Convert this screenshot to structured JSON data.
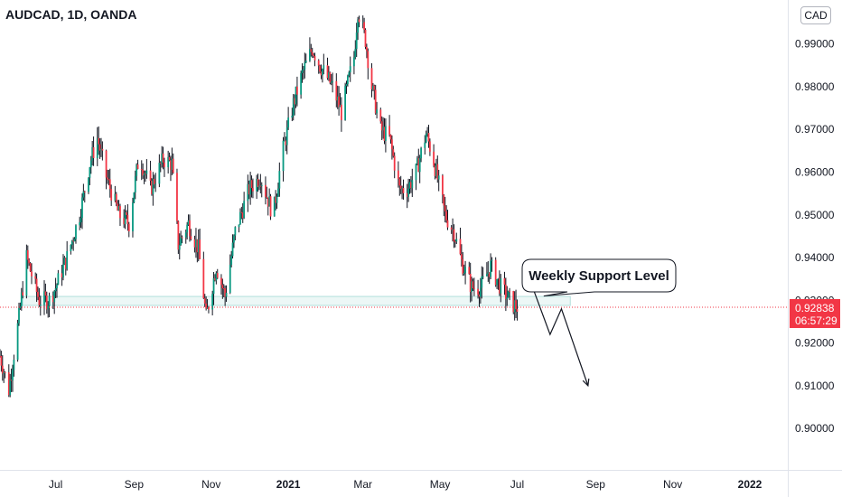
{
  "header": {
    "symbol_title": "AUDCAD, 1D, OANDA"
  },
  "currency_badge": "CAD",
  "chart_data": {
    "type": "candlestick",
    "title": "AUDCAD, 1D, OANDA",
    "y_ticks": [
      "0.99000",
      "0.98000",
      "0.97000",
      "0.96000",
      "0.95000",
      "0.94000",
      "0.93000",
      "0.92000",
      "0.91000",
      "0.90000"
    ],
    "y_tick_values": [
      0.99,
      0.98,
      0.97,
      0.96,
      0.95,
      0.94,
      0.93,
      0.92,
      0.91,
      0.9
    ],
    "ylim": [
      0.8903,
      1.0003
    ],
    "x_ticks": [
      "Jul",
      "Sep",
      "Nov",
      "2021",
      "Mar",
      "May",
      "Jul",
      "Sep",
      "Nov",
      "2022"
    ],
    "x_tick_dates": [
      "2020-07-01",
      "2020-09-01",
      "2020-11-01",
      "2021-01-01",
      "2021-03-01",
      "2021-05-01",
      "2021-07-01",
      "2021-09-01",
      "2021-11-01",
      "2022-01-01"
    ],
    "x_range": [
      "2020-05-18",
      "2022-01-31"
    ],
    "bold_x_ticks": [
      "2021",
      "2022"
    ],
    "price_path": [
      [
        "2020-05-18",
        0.917
      ],
      [
        "2020-05-25",
        0.909
      ],
      [
        "2020-06-02",
        0.926
      ],
      [
        "2020-06-08",
        0.94
      ],
      [
        "2020-06-18",
        0.93
      ],
      [
        "2020-06-26",
        0.93
      ],
      [
        "2020-07-01",
        0.933
      ],
      [
        "2020-07-10",
        0.94
      ],
      [
        "2020-07-20",
        0.95
      ],
      [
        "2020-07-28",
        0.962
      ],
      [
        "2020-08-03",
        0.968
      ],
      [
        "2020-08-10",
        0.959
      ],
      [
        "2020-08-20",
        0.95
      ],
      [
        "2020-08-28",
        0.948
      ],
      [
        "2020-09-05",
        0.964
      ],
      [
        "2020-09-14",
        0.956
      ],
      [
        "2020-09-24",
        0.963
      ],
      [
        "2020-10-01",
        0.962
      ],
      [
        "2020-10-06",
        0.943
      ],
      [
        "2020-10-14",
        0.948
      ],
      [
        "2020-10-22",
        0.942
      ],
      [
        "2020-10-28",
        0.926
      ],
      [
        "2020-11-05",
        0.938
      ],
      [
        "2020-11-12",
        0.931
      ],
      [
        "2020-11-20",
        0.946
      ],
      [
        "2020-12-01",
        0.956
      ],
      [
        "2020-12-10",
        0.959
      ],
      [
        "2020-12-20",
        0.95
      ],
      [
        "2020-12-27",
        0.964
      ],
      [
        "2021-01-05",
        0.976
      ],
      [
        "2021-01-12",
        0.983
      ],
      [
        "2021-01-20",
        0.989
      ],
      [
        "2021-01-26",
        0.985
      ],
      [
        "2021-02-05",
        0.98
      ],
      [
        "2021-02-12",
        0.974
      ],
      [
        "2021-02-18",
        0.982
      ],
      [
        "2021-02-22",
        0.987
      ],
      [
        "2021-02-25",
        0.998
      ],
      [
        "2021-03-03",
        0.991
      ],
      [
        "2021-03-08",
        0.98
      ],
      [
        "2021-03-15",
        0.97
      ],
      [
        "2021-03-22",
        0.968
      ],
      [
        "2021-03-30",
        0.956
      ],
      [
        "2021-04-05",
        0.956
      ],
      [
        "2021-04-12",
        0.96
      ],
      [
        "2021-04-20",
        0.969
      ],
      [
        "2021-04-25",
        0.964
      ],
      [
        "2021-05-05",
        0.95
      ],
      [
        "2021-05-12",
        0.946
      ],
      [
        "2021-05-18",
        0.939
      ],
      [
        "2021-05-26",
        0.933
      ],
      [
        "2021-06-02",
        0.933
      ],
      [
        "2021-06-10",
        0.938
      ],
      [
        "2021-06-18",
        0.933
      ],
      [
        "2021-06-28",
        0.929
      ],
      [
        "2021-07-01",
        0.9284
      ]
    ],
    "last_price": {
      "value": 0.92838,
      "label": "0.92838",
      "countdown": "06:57:29",
      "color": "#f23645"
    },
    "support_zone": {
      "low": 0.9288,
      "high": 0.9309,
      "from": "2020-06-05",
      "to": "2021-08-12"
    },
    "annotation": {
      "text": "Weekly Support Level"
    },
    "forecast_path": [
      [
        "2021-07-12",
        0.934
      ],
      [
        "2021-07-27",
        0.922
      ],
      [
        "2021-08-05",
        0.928
      ],
      [
        "2021-08-26",
        0.91
      ]
    ],
    "colors": {
      "up": "#089981",
      "down": "#f23645",
      "bar": "#131722",
      "support": "#b2dfdb",
      "axis_text": "#131722"
    }
  }
}
